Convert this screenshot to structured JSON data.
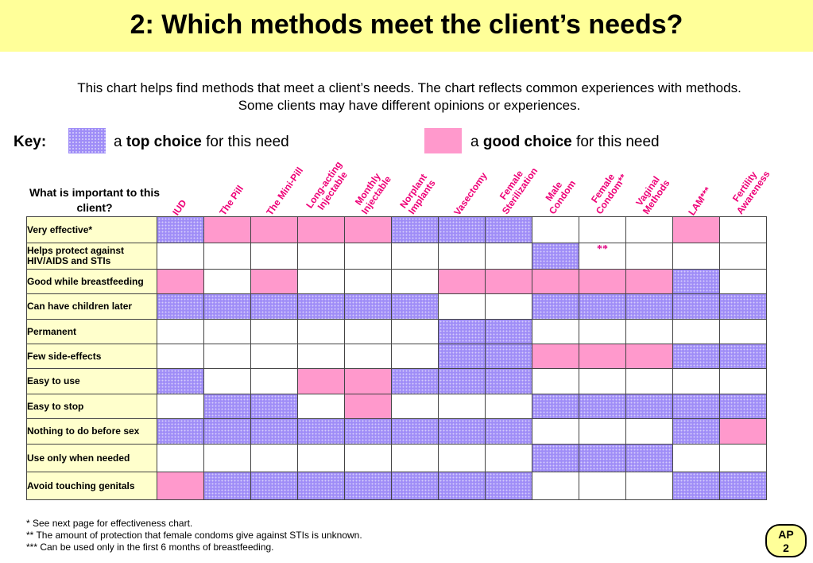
{
  "title": "2: Which methods meet the client’s needs?",
  "intro_line1": "This chart helps find methods that meet a client’s needs. The chart reflects common experiences with methods.",
  "intro_line2": "Some clients may have different opinions or experiences.",
  "key": {
    "label": "Key:",
    "top_prefix": "a ",
    "top_bold": "top choice",
    "top_suffix": " for this need",
    "good_prefix": "a ",
    "good_bold": "good choice",
    "good_suffix": " for this need",
    "top_color": "#9f8df7",
    "good_color": "#ff99cc"
  },
  "need_header": "What is important to this client?",
  "methods": [
    "IUD",
    "The Pill",
    "The Mini-Pill",
    "Long-acting\nInjectable",
    "Monthly\nInjectable",
    "Norplant\nImplants",
    "Vasectomy",
    "Female\nSterilization",
    "Male\nCondom",
    "Female\nCondom**",
    "Vaginal\nMethods",
    "LAM***",
    "Fertility\nAwareness"
  ],
  "rows": [
    {
      "need": "Very effective*",
      "cells": [
        "T",
        "G",
        "G",
        "G",
        "G",
        "T",
        "T",
        "T",
        "",
        "",
        "",
        "G",
        ""
      ]
    },
    {
      "need": "Helps protect against HIV/AIDS and STIs",
      "cells": [
        "",
        "",
        "",
        "",
        "",
        "",
        "",
        "",
        "T",
        "**",
        "",
        "",
        ""
      ]
    },
    {
      "need": "Good while breastfeeding",
      "cells": [
        "G",
        "",
        "G",
        "",
        "",
        "",
        "G",
        "G",
        "G",
        "G",
        "G",
        "T",
        ""
      ]
    },
    {
      "need": "Can have children later",
      "cells": [
        "T",
        "T",
        "T",
        "T",
        "T",
        "T",
        "",
        "",
        "T",
        "T",
        "T",
        "T",
        "T"
      ]
    },
    {
      "need": "Permanent",
      "cells": [
        "",
        "",
        "",
        "",
        "",
        "",
        "T",
        "T",
        "",
        "",
        "",
        "",
        ""
      ]
    },
    {
      "need": "Few  side-effects",
      "cells": [
        "",
        "",
        "",
        "",
        "",
        "",
        "T",
        "T",
        "G",
        "G",
        "G",
        "T",
        "T"
      ]
    },
    {
      "need": "Easy to use",
      "cells": [
        "T",
        "",
        "",
        "G",
        "G",
        "T",
        "T",
        "T",
        "",
        "",
        "",
        "",
        ""
      ]
    },
    {
      "need": "Easy to stop",
      "cells": [
        "",
        "T",
        "T",
        "",
        "G",
        "",
        "",
        "",
        "T",
        "T",
        "T",
        "T",
        "T"
      ]
    },
    {
      "need": "Nothing to do before sex",
      "cells": [
        "T",
        "T",
        "T",
        "T",
        "T",
        "T",
        "T",
        "T",
        "",
        "",
        "",
        "T",
        "G"
      ]
    },
    {
      "need": "Use only when needed",
      "cells": [
        "",
        "",
        "",
        "",
        "",
        "",
        "",
        "",
        "T",
        "T",
        "T",
        "",
        ""
      ]
    },
    {
      "need": "Avoid touching genitals",
      "cells": [
        "G",
        "T",
        "T",
        "T",
        "T",
        "T",
        "T",
        "T",
        "",
        "",
        "",
        "T",
        "T"
      ]
    }
  ],
  "footnotes": [
    "* See next page for effectiveness chart.",
    "** The amount of protection that female condoms give against STIs is unknown.",
    "*** Can be used only in the first 6 months of breastfeeding."
  ],
  "badge_line1": "AP",
  "badge_line2": "2"
}
